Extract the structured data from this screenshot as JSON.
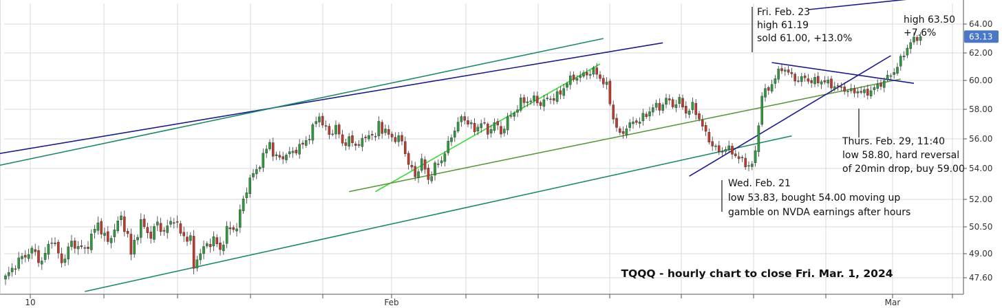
{
  "chart_data": {
    "type": "candlestick",
    "title": "TQQQ - hourly chart to close Fri. Mar. 1, 2024",
    "ylim": [
      46.8,
      65.2
    ],
    "y_ticks": [
      "64.00",
      "62.00",
      "60.00",
      "58.00",
      "56.00",
      "54.00",
      "52.00",
      "50.50",
      "49.00",
      "47.60"
    ],
    "x_ticks": [
      "10",
      "",
      "",
      "",
      "",
      "Feb",
      "",
      "",
      "",
      "",
      "",
      "",
      "Mar",
      ""
    ],
    "last_price": "63.13",
    "grid": true,
    "colors": {
      "up": "#2e9a3e",
      "down": "#c0392b",
      "price_tag": "#4a78c9"
    },
    "candle_path": [
      [
        0,
        47.6
      ],
      [
        4,
        48.6
      ],
      [
        8,
        49.2
      ],
      [
        11,
        48.5
      ],
      [
        14,
        49.9
      ],
      [
        17,
        48.5
      ],
      [
        20,
        49.6
      ],
      [
        24,
        49.2
      ],
      [
        28,
        50.7
      ],
      [
        31,
        49.6
      ],
      [
        33,
        50.4
      ],
      [
        35,
        51.0
      ],
      [
        37,
        50.0
      ],
      [
        38,
        48.9
      ],
      [
        39,
        49.7
      ],
      [
        41,
        50.7
      ],
      [
        44,
        50.0
      ],
      [
        46,
        50.7
      ],
      [
        48,
        50.2
      ],
      [
        51,
        51.0
      ],
      [
        53,
        50.1
      ],
      [
        56,
        49.8
      ],
      [
        57,
        48.1
      ],
      [
        58,
        48.8
      ],
      [
        61,
        49.5
      ],
      [
        63,
        49.8
      ],
      [
        65,
        49.2
      ],
      [
        67,
        50.3
      ],
      [
        70,
        50.5
      ],
      [
        72,
        52.0
      ],
      [
        74,
        53.3
      ],
      [
        76,
        53.9
      ],
      [
        78,
        54.8
      ],
      [
        80,
        55.8
      ],
      [
        81,
        55.0
      ],
      [
        82,
        54.7
      ],
      [
        84,
        54.8
      ],
      [
        86,
        55.0
      ],
      [
        88,
        55.3
      ],
      [
        90,
        55.6
      ],
      [
        92,
        56.2
      ],
      [
        94,
        57.2
      ],
      [
        95,
        57.6
      ],
      [
        96,
        57.0
      ],
      [
        98,
        56.3
      ],
      [
        100,
        56.8
      ],
      [
        102,
        55.7
      ],
      [
        104,
        55.9
      ],
      [
        106,
        55.6
      ],
      [
        108,
        55.8
      ],
      [
        110,
        56.4
      ],
      [
        112,
        56.0
      ],
      [
        113,
        57.2
      ],
      [
        114,
        56.6
      ],
      [
        116,
        56.3
      ],
      [
        118,
        56.0
      ],
      [
        120,
        55.9
      ],
      [
        122,
        54.3
      ],
      [
        124,
        53.5
      ],
      [
        126,
        54.5
      ],
      [
        128,
        53.3
      ],
      [
        130,
        54.1
      ],
      [
        132,
        54.6
      ],
      [
        134,
        55.6
      ],
      [
        136,
        56.7
      ],
      [
        138,
        57.4
      ],
      [
        140,
        57.2
      ],
      [
        142,
        56.5
      ],
      [
        144,
        57.2
      ],
      [
        146,
        56.4
      ],
      [
        148,
        57.1
      ],
      [
        150,
        56.4
      ],
      [
        152,
        57.3
      ],
      [
        154,
        57.8
      ],
      [
        156,
        58.5
      ],
      [
        158,
        58.6
      ],
      [
        160,
        58.7
      ],
      [
        162,
        58.4
      ],
      [
        164,
        58.7
      ],
      [
        166,
        58.8
      ],
      [
        168,
        59.1
      ],
      [
        170,
        59.9
      ],
      [
        172,
        60.2
      ],
      [
        174,
        60.3
      ],
      [
        176,
        60.5
      ],
      [
        178,
        60.7
      ],
      [
        180,
        60.2
      ],
      [
        182,
        59.6
      ],
      [
        184,
        57.4
      ],
      [
        186,
        56.2
      ],
      [
        188,
        56.8
      ],
      [
        190,
        57.1
      ],
      [
        192,
        57.3
      ],
      [
        194,
        57.6
      ],
      [
        196,
        58.2
      ],
      [
        198,
        58.1
      ],
      [
        200,
        58.7
      ],
      [
        202,
        58.3
      ],
      [
        204,
        58.6
      ],
      [
        206,
        57.8
      ],
      [
        208,
        58.2
      ],
      [
        210,
        57.4
      ],
      [
        212,
        56.3
      ],
      [
        214,
        55.6
      ],
      [
        216,
        55.1
      ],
      [
        218,
        55.4
      ],
      [
        220,
        55.1
      ],
      [
        222,
        54.7
      ],
      [
        224,
        54.3
      ],
      [
        226,
        54.2
      ],
      [
        227,
        55.1
      ],
      [
        229,
        59.0
      ],
      [
        231,
        59.4
      ],
      [
        233,
        60.2
      ],
      [
        235,
        60.9
      ],
      [
        236,
        60.8
      ],
      [
        238,
        60.3
      ],
      [
        240,
        60.0
      ],
      [
        242,
        60.2
      ],
      [
        244,
        59.9
      ],
      [
        246,
        60.0
      ],
      [
        248,
        59.9
      ],
      [
        250,
        59.7
      ],
      [
        252,
        59.5
      ],
      [
        254,
        59.4
      ],
      [
        256,
        59.2
      ],
      [
        258,
        59.3
      ],
      [
        260,
        59.1
      ],
      [
        262,
        59.3
      ],
      [
        264,
        59.6
      ],
      [
        266,
        60.0
      ],
      [
        268,
        60.4
      ],
      [
        270,
        61.0
      ],
      [
        272,
        62.0
      ],
      [
        274,
        62.7
      ],
      [
        276,
        63.1
      ],
      [
        277,
        63.13
      ]
    ],
    "trend_lines": [
      {
        "color": "#1a1a8c",
        "points": [
          [
            -2,
            55.0
          ],
          [
            199,
            62.7
          ]
        ]
      },
      {
        "color": "#1b8a6b",
        "points": [
          [
            -2,
            54.2
          ],
          [
            181,
            63.0
          ]
        ]
      },
      {
        "color": "#1b8a6b",
        "points": [
          [
            24,
            46.8
          ],
          [
            238,
            56.2
          ]
        ]
      },
      {
        "color": "#33dd33",
        "points": [
          [
            112,
            52.5
          ],
          [
            180,
            61.2
          ]
        ]
      },
      {
        "color": "#5a9a3a",
        "points": [
          [
            104,
            52.5
          ],
          [
            271,
            60.1
          ]
        ]
      },
      {
        "color": "#1a1a8c",
        "points": [
          [
            232,
            61.3
          ],
          [
            275,
            59.8
          ]
        ]
      },
      {
        "color": "#1a1a8c",
        "points": [
          [
            243,
            65.0
          ],
          [
            281,
            65.9
          ]
        ]
      },
      {
        "color": "#1a1a8c",
        "points": [
          [
            207,
            53.5
          ],
          [
            268,
            61.8
          ]
        ]
      }
    ],
    "annotations": [
      {
        "lines": [
          "Fri. Feb. 23",
          "high 61.19",
          "sold 61.00, +13.0%"
        ],
        "pointer": "feb23"
      },
      {
        "lines": [
          "high 63.50",
          "+7.6%"
        ],
        "pointer": "none"
      },
      {
        "lines": [
          "Thurs. Feb. 29, 11:40",
          "low 58.80, hard reversal",
          "of 20min drop, buy 59.00"
        ],
        "pointer": "feb29"
      },
      {
        "lines": [
          "Wed. Feb. 21",
          "low 53.83, bought 54.00 moving up",
          "gamble on NVDA earnings after hours"
        ],
        "pointer": "feb21"
      }
    ]
  }
}
